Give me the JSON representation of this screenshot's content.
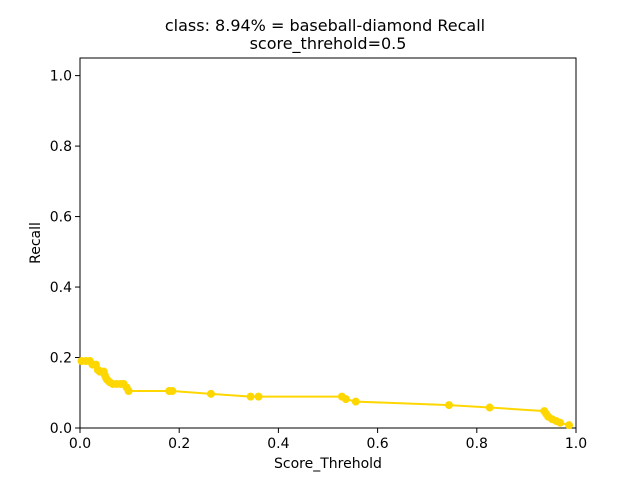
{
  "chart_data": {
    "type": "line",
    "title": "class: 8.94% = baseball-diamond Recall",
    "subtitle": "score_threhold=0.5",
    "xlabel": "Score_Threhold",
    "ylabel": "Recall",
    "xlim": [
      0.0,
      1.0
    ],
    "ylim": [
      0.0,
      1.05
    ],
    "xticks": [
      "0.0",
      "0.2",
      "0.4",
      "0.6",
      "0.8",
      "1.0"
    ],
    "yticks": [
      "0.0",
      "0.2",
      "0.4",
      "0.6",
      "0.8",
      "1.0"
    ],
    "grid": false,
    "series": [
      {
        "color": "#FFD700",
        "x": [
          0.003,
          0.012,
          0.02,
          0.025,
          0.032,
          0.036,
          0.04,
          0.044,
          0.048,
          0.05,
          0.053,
          0.056,
          0.06,
          0.066,
          0.074,
          0.082,
          0.088,
          0.094,
          0.098,
          0.18,
          0.186,
          0.264,
          0.344,
          0.36,
          0.528,
          0.536,
          0.556,
          0.744,
          0.826,
          0.936,
          0.94,
          0.944,
          0.952,
          0.96,
          0.968,
          0.986
        ],
        "y": [
          0.19,
          0.19,
          0.19,
          0.18,
          0.18,
          0.165,
          0.16,
          0.16,
          0.16,
          0.15,
          0.14,
          0.135,
          0.13,
          0.125,
          0.125,
          0.125,
          0.125,
          0.115,
          0.105,
          0.105,
          0.105,
          0.097,
          0.089,
          0.089,
          0.089,
          0.082,
          0.075,
          0.065,
          0.058,
          0.048,
          0.04,
          0.032,
          0.025,
          0.02,
          0.015,
          0.008
        ]
      }
    ]
  }
}
